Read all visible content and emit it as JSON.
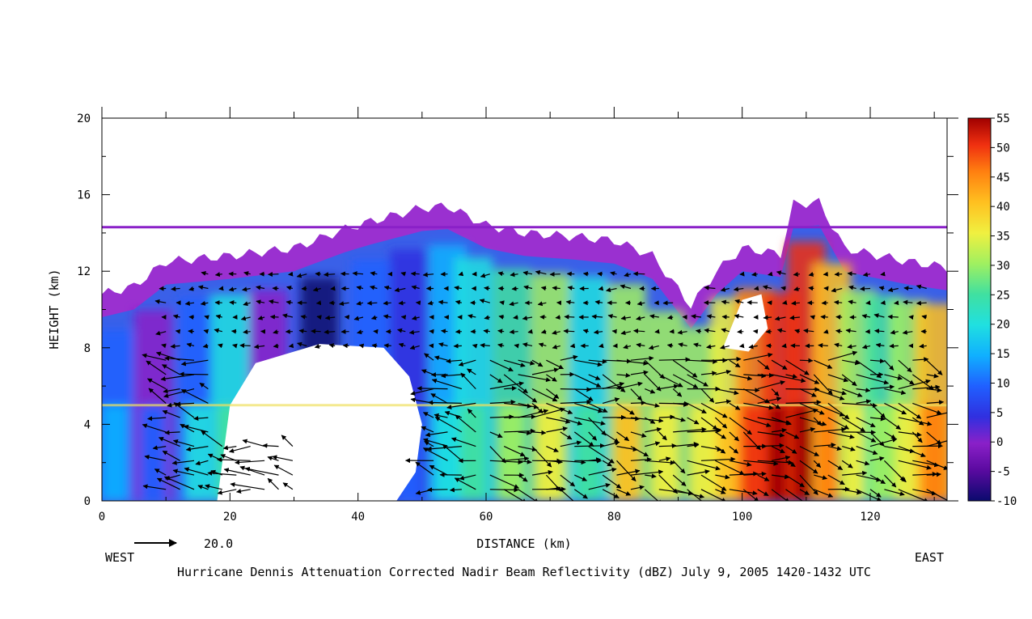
{
  "chart_data": {
    "type": "heatmap",
    "title": "Hurricane Dennis Attenuation Corrected Nadir Beam Reflectivity (dBZ) July 9, 2005 1420-1432 UTC",
    "xlabel": "DISTANCE (km)",
    "ylabel": "HEIGHT (km)",
    "xlim": [
      0,
      132
    ],
    "ylim": [
      0,
      20
    ],
    "x_ticks": [
      0,
      20,
      40,
      60,
      80,
      100,
      120
    ],
    "y_ticks": [
      0,
      4,
      8,
      12,
      16,
      20
    ],
    "left_annotation": "WEST",
    "right_annotation": "EAST",
    "vector_reference": {
      "value": "20.0"
    },
    "colorbar": {
      "label_values": [
        55,
        50,
        45,
        40,
        35,
        30,
        25,
        20,
        15,
        10,
        5,
        0,
        -5,
        -10
      ],
      "range": [
        -10,
        55
      ],
      "colors": [
        "#0a0a6e",
        "#5a0aa0",
        "#8a20c8",
        "#3030e0",
        "#2060ff",
        "#10b0ff",
        "#20e0e0",
        "#40e0a0",
        "#a0f060",
        "#f0f040",
        "#ffc020",
        "#ff8010",
        "#f03010",
        "#a00000"
      ]
    },
    "echo_top_profile": {
      "x": [
        0,
        5,
        10,
        20,
        30,
        38,
        42,
        50,
        54,
        60,
        66,
        74,
        80,
        86,
        92,
        96,
        100,
        106,
        108,
        112,
        116,
        120,
        126,
        132
      ],
      "top": [
        10.8,
        11.2,
        12.5,
        12.8,
        13.2,
        14.2,
        14.6,
        15.3,
        15.4,
        14.4,
        14.0,
        13.8,
        13.6,
        12.8,
        10.2,
        12.0,
        13.2,
        12.9,
        15.5,
        15.6,
        13.2,
        12.9,
        12.5,
        12.2
      ]
    },
    "reflectivity_columns": {
      "x": [
        2,
        8,
        15,
        20,
        26,
        34,
        42,
        48,
        54,
        58,
        64,
        70,
        76,
        82,
        88,
        94,
        98,
        102,
        106,
        110,
        114,
        118,
        122,
        126,
        130
      ],
      "low_level_dbz": [
        10,
        2,
        12,
        18,
        0,
        -10,
        8,
        6,
        15,
        18,
        24,
        28,
        20,
        32,
        30,
        28,
        36,
        44,
        50,
        48,
        40,
        30,
        26,
        30,
        38
      ]
    },
    "bright_band_height_km": 5.0,
    "aircraft_altitude_km": 14.3
  }
}
